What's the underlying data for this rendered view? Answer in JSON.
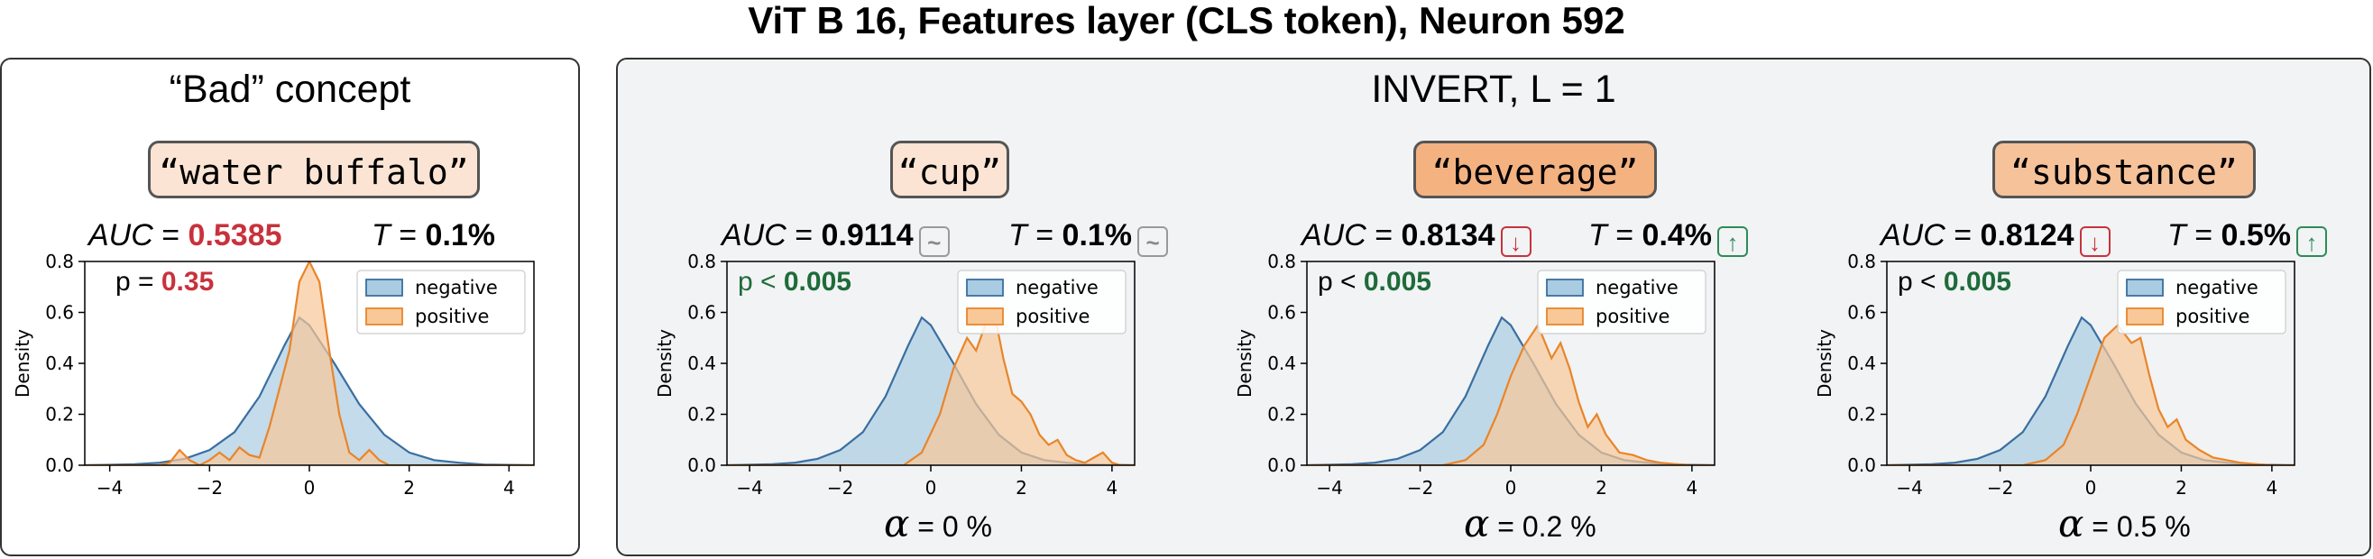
{
  "suptitle": "ViT B 16, Features layer (CLS token), Neuron 592",
  "bad_panel": {
    "title": "“Bad” concept",
    "concept": "“water buffalo”",
    "auc_label": "AUC",
    "auc_value": "0.5385",
    "t_label": "T",
    "t_value": "0.1%",
    "p_label": "p",
    "p_eq": "=",
    "p_value": "0.35"
  },
  "invert_panel": {
    "title": "INVERT, L = 1",
    "concepts": [
      {
        "concept": "“cup”",
        "auc_value": "0.9114",
        "auc_badge": "~",
        "t_value": "0.1%",
        "t_badge": "~",
        "p_cmp": "<",
        "p_value": "0.005",
        "alpha_value": "= 0 %"
      },
      {
        "concept": "“beverage”",
        "auc_value": "0.8134",
        "auc_badge": "↓",
        "t_value": "0.4%",
        "t_badge": "↑",
        "p_cmp": "<",
        "p_value": "0.005",
        "alpha_value": "= 0.2 %"
      },
      {
        "concept": "“substance”",
        "auc_value": "0.8124",
        "auc_badge": "↓",
        "t_value": "0.5%",
        "t_badge": "↑",
        "p_cmp": "<",
        "p_value": "0.005",
        "alpha_value": "= 0.5 %"
      }
    ]
  },
  "colors": {
    "negative_fill": "#a9cce3",
    "negative_line": "#3a6e9f",
    "positive_fill": "#f8c898",
    "positive_line": "#e8852a",
    "overlap": "#c8b3a0",
    "red": "#c8323c",
    "green": "#1e6b3a",
    "concept_light": "#fbe4d3",
    "concept_mid": "#f6c29a",
    "concept_strong": "#f4b281"
  },
  "chart_data": [
    {
      "type": "area",
      "ylabel": "Density",
      "xlim": [
        -4.5,
        4.5
      ],
      "ylim": [
        0,
        0.8
      ],
      "xticks": [
        -4,
        -2,
        0,
        2,
        4
      ],
      "xtick_labels": [
        "−4",
        "−2",
        "0",
        "2",
        "4"
      ],
      "yticks": [
        0.0,
        0.2,
        0.4,
        0.6,
        0.8
      ],
      "ytick_labels": [
        "0.0",
        "0.2",
        "0.4",
        "0.6",
        "0.8"
      ],
      "legend": [
        "negative",
        "positive"
      ],
      "legend_position": "upper right",
      "series": [
        {
          "name": "negative",
          "x": [
            -4.5,
            -3.5,
            -3,
            -2.5,
            -2,
            -1.5,
            -1,
            -0.5,
            -0.2,
            0,
            0.5,
            1,
            1.5,
            2,
            2.5,
            3,
            3.5,
            4.5
          ],
          "y": [
            0,
            0.004,
            0.01,
            0.025,
            0.06,
            0.13,
            0.27,
            0.47,
            0.58,
            0.55,
            0.4,
            0.24,
            0.12,
            0.05,
            0.02,
            0.01,
            0.003,
            0
          ]
        },
        {
          "name": "positive",
          "x": [
            -4.5,
            -3,
            -2.8,
            -2.6,
            -2.4,
            -2.2,
            -2,
            -1.8,
            -1.6,
            -1.4,
            -1.2,
            -1,
            -0.8,
            -0.6,
            -0.4,
            -0.2,
            0,
            0.2,
            0.4,
            0.6,
            0.8,
            1,
            1.2,
            1.4,
            1.6,
            2,
            4.5
          ],
          "y": [
            0,
            0,
            0.01,
            0.06,
            0.02,
            0,
            0.02,
            0.05,
            0.02,
            0.07,
            0.04,
            0.03,
            0.15,
            0.3,
            0.45,
            0.72,
            0.8,
            0.72,
            0.45,
            0.2,
            0.05,
            0.02,
            0.06,
            0.02,
            0.0,
            0,
            0
          ]
        }
      ]
    },
    {
      "type": "area",
      "ylabel": "Density",
      "xlim": [
        -4.5,
        4.5
      ],
      "ylim": [
        0,
        0.8
      ],
      "xticks": [
        -4,
        -2,
        0,
        2,
        4
      ],
      "xtick_labels": [
        "−4",
        "−2",
        "0",
        "2",
        "4"
      ],
      "yticks": [
        0.0,
        0.2,
        0.4,
        0.6,
        0.8
      ],
      "ytick_labels": [
        "0.0",
        "0.2",
        "0.4",
        "0.6",
        "0.8"
      ],
      "legend": [
        "negative",
        "positive"
      ],
      "legend_position": "upper right",
      "series": [
        {
          "name": "negative",
          "x": [
            -4.5,
            -3.5,
            -3,
            -2.5,
            -2,
            -1.5,
            -1,
            -0.5,
            -0.2,
            0,
            0.5,
            1,
            1.5,
            2,
            2.5,
            3,
            3.5,
            4.5
          ],
          "y": [
            0,
            0.004,
            0.01,
            0.025,
            0.06,
            0.13,
            0.27,
            0.47,
            0.58,
            0.55,
            0.4,
            0.24,
            0.12,
            0.05,
            0.02,
            0.01,
            0.003,
            0
          ]
        },
        {
          "name": "positive",
          "x": [
            -4.5,
            -0.6,
            -0.2,
            0.2,
            0.5,
            0.8,
            1.0,
            1.2,
            1.4,
            1.6,
            1.8,
            2.0,
            2.2,
            2.4,
            2.6,
            2.8,
            3.0,
            3.2,
            3.4,
            3.6,
            3.8,
            4.0,
            4.2,
            4.5
          ],
          "y": [
            0,
            0,
            0.05,
            0.2,
            0.38,
            0.5,
            0.45,
            0.55,
            0.6,
            0.42,
            0.28,
            0.25,
            0.2,
            0.12,
            0.08,
            0.1,
            0.04,
            0.02,
            0.01,
            0.03,
            0.05,
            0.01,
            0,
            0
          ]
        }
      ]
    },
    {
      "type": "area",
      "ylabel": "Density",
      "xlim": [
        -4.5,
        4.5
      ],
      "ylim": [
        0,
        0.8
      ],
      "xticks": [
        -4,
        -2,
        0,
        2,
        4
      ],
      "xtick_labels": [
        "−4",
        "−2",
        "0",
        "2",
        "4"
      ],
      "yticks": [
        0.0,
        0.2,
        0.4,
        0.6,
        0.8
      ],
      "ytick_labels": [
        "0.0",
        "0.2",
        "0.4",
        "0.6",
        "0.8"
      ],
      "legend": [
        "negative",
        "positive"
      ],
      "legend_position": "upper right",
      "series": [
        {
          "name": "negative",
          "x": [
            -4.5,
            -3.5,
            -3,
            -2.5,
            -2,
            -1.5,
            -1,
            -0.5,
            -0.2,
            0,
            0.5,
            1,
            1.5,
            2,
            2.5,
            3,
            3.5,
            4.5
          ],
          "y": [
            0,
            0.004,
            0.01,
            0.025,
            0.06,
            0.13,
            0.27,
            0.47,
            0.58,
            0.55,
            0.4,
            0.24,
            0.12,
            0.05,
            0.02,
            0.01,
            0.003,
            0
          ]
        },
        {
          "name": "positive",
          "x": [
            -4.5,
            -1.5,
            -1,
            -0.6,
            -0.3,
            0,
            0.3,
            0.6,
            0.9,
            1.1,
            1.3,
            1.5,
            1.7,
            1.9,
            2.1,
            2.4,
            2.7,
            3.0,
            3.3,
            3.6,
            4.0,
            4.5
          ],
          "y": [
            0,
            0,
            0.02,
            0.08,
            0.2,
            0.35,
            0.47,
            0.55,
            0.42,
            0.48,
            0.38,
            0.25,
            0.15,
            0.2,
            0.12,
            0.05,
            0.04,
            0.02,
            0.01,
            0.005,
            0,
            0
          ]
        }
      ]
    },
    {
      "type": "area",
      "ylabel": "Density",
      "xlim": [
        -4.5,
        4.5
      ],
      "ylim": [
        0,
        0.8
      ],
      "xticks": [
        -4,
        -2,
        0,
        2,
        4
      ],
      "xtick_labels": [
        "−4",
        "−2",
        "0",
        "2",
        "4"
      ],
      "yticks": [
        0.0,
        0.2,
        0.4,
        0.6,
        0.8
      ],
      "ytick_labels": [
        "0.0",
        "0.2",
        "0.4",
        "0.6",
        "0.8"
      ],
      "legend": [
        "negative",
        "positive"
      ],
      "legend_position": "upper right",
      "series": [
        {
          "name": "negative",
          "x": [
            -4.5,
            -3.5,
            -3,
            -2.5,
            -2,
            -1.5,
            -1,
            -0.5,
            -0.2,
            0,
            0.5,
            1,
            1.5,
            2,
            2.5,
            3,
            3.5,
            4.5
          ],
          "y": [
            0,
            0.004,
            0.01,
            0.025,
            0.06,
            0.13,
            0.27,
            0.47,
            0.58,
            0.55,
            0.4,
            0.24,
            0.12,
            0.05,
            0.02,
            0.01,
            0.003,
            0
          ]
        },
        {
          "name": "positive",
          "x": [
            -4.5,
            -1.5,
            -1,
            -0.6,
            -0.3,
            0,
            0.3,
            0.6,
            0.9,
            1.1,
            1.3,
            1.5,
            1.7,
            1.9,
            2.1,
            2.4,
            2.7,
            3.0,
            3.3,
            3.6,
            4.0,
            4.5
          ],
          "y": [
            0,
            0,
            0.02,
            0.08,
            0.2,
            0.35,
            0.5,
            0.55,
            0.48,
            0.5,
            0.35,
            0.22,
            0.15,
            0.18,
            0.1,
            0.06,
            0.03,
            0.02,
            0.01,
            0.005,
            0,
            0
          ]
        }
      ]
    }
  ]
}
